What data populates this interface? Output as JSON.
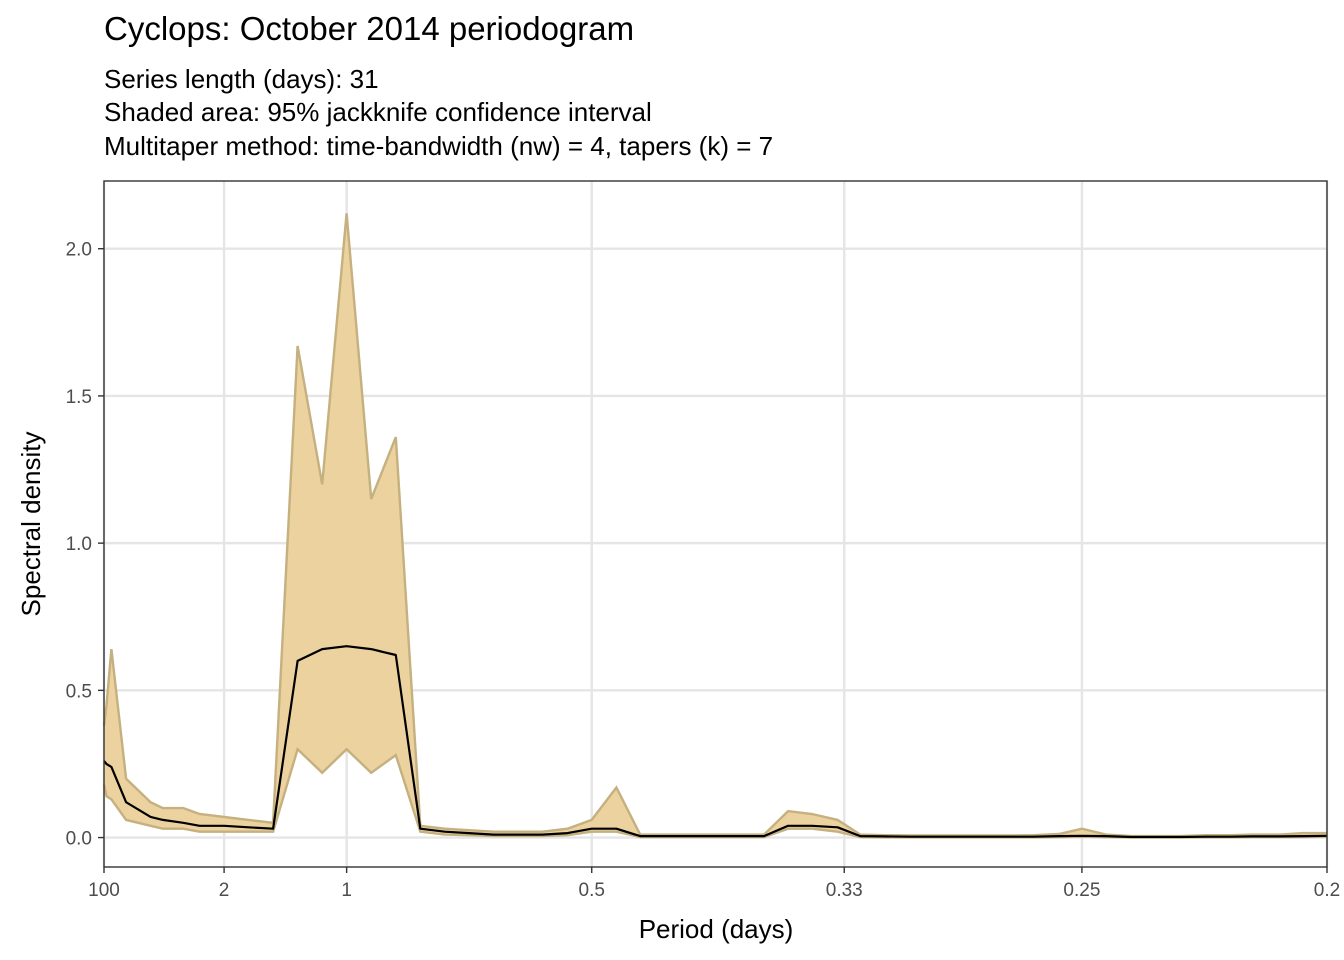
{
  "chart_data": {
    "type": "area",
    "title": "Cyclops: October 2014 periodogram",
    "subtitles": [
      "Series length (days): 31",
      "Shaded area: 95% jackknife confidence interval",
      "Multitaper method: time-bandwidth (nw) = 4, tapers (k) = 7"
    ],
    "xlabel": "Period (days)",
    "ylabel": "Spectral density",
    "x_scale": "reciprocal (axis printed as period = 1/frequency)",
    "x_ticks": [
      "100",
      "2",
      "1",
      "0.5",
      "0.33",
      "0.25",
      "0.2"
    ],
    "y_ticks": [
      "0.0",
      "0.5",
      "1.0",
      "1.5",
      "2.0"
    ],
    "xlim_period": [
      100,
      0.2
    ],
    "ylim": [
      -0.1,
      2.23
    ],
    "grid": true,
    "series_colors": {
      "band_fill": "#ecd29f",
      "band_edge": "#c5b07f",
      "line": "#000000"
    },
    "x": [
      100,
      50,
      25,
      10,
      5,
      4,
      3,
      2.5,
      2,
      1.667,
      1.429,
      1.25,
      1.111,
      1.0,
      0.909,
      0.833,
      0.769,
      0.714,
      0.667,
      0.625,
      0.588,
      0.556,
      0.526,
      0.5,
      0.476,
      0.455,
      0.435,
      0.417,
      0.4,
      0.385,
      0.37,
      0.357,
      0.345,
      0.333,
      0.323,
      0.313,
      0.303,
      0.294,
      0.286,
      0.278,
      0.27,
      0.263,
      0.256,
      0.25,
      0.244,
      0.238,
      0.233,
      0.227,
      0.222,
      0.217,
      0.213,
      0.208,
      0.204,
      0.2
    ],
    "spectral_density": [
      0.26,
      0.25,
      0.24,
      0.12,
      0.07,
      0.06,
      0.05,
      0.04,
      0.04,
      0.035,
      0.03,
      0.6,
      0.64,
      0.65,
      0.64,
      0.62,
      0.03,
      0.02,
      0.015,
      0.01,
      0.01,
      0.01,
      0.015,
      0.03,
      0.03,
      0.005,
      0.005,
      0.005,
      0.005,
      0.005,
      0.005,
      0.04,
      0.04,
      0.035,
      0.005,
      0.004,
      0.003,
      0.003,
      0.003,
      0.003,
      0.003,
      0.003,
      0.005,
      0.006,
      0.005,
      0.002,
      0.002,
      0.002,
      0.003,
      0.003,
      0.004,
      0.004,
      0.005,
      0.006
    ],
    "ci_lower": [
      0.18,
      0.14,
      0.13,
      0.06,
      0.04,
      0.03,
      0.03,
      0.02,
      0.02,
      0.02,
      0.02,
      0.3,
      0.22,
      0.3,
      0.22,
      0.28,
      0.02,
      0.01,
      0.008,
      0.005,
      0.005,
      0.005,
      0.008,
      0.02,
      0.02,
      0.002,
      0.002,
      0.002,
      0.002,
      0.002,
      0.002,
      0.03,
      0.03,
      0.02,
      0.002,
      0.001,
      0.001,
      0.001,
      0.001,
      0.001,
      0.001,
      0.001,
      0.002,
      0.003,
      0.002,
      0.001,
      0.001,
      0.001,
      0.001,
      0.001,
      0.002,
      0.002,
      0.002,
      0.003
    ],
    "ci_upper": [
      0.38,
      0.45,
      0.64,
      0.2,
      0.12,
      0.1,
      0.1,
      0.08,
      0.07,
      0.06,
      0.05,
      1.67,
      1.2,
      2.12,
      1.15,
      1.36,
      0.04,
      0.03,
      0.025,
      0.02,
      0.02,
      0.02,
      0.03,
      0.06,
      0.17,
      0.01,
      0.01,
      0.01,
      0.01,
      0.01,
      0.01,
      0.09,
      0.08,
      0.06,
      0.01,
      0.008,
      0.007,
      0.007,
      0.007,
      0.007,
      0.007,
      0.008,
      0.012,
      0.03,
      0.01,
      0.005,
      0.005,
      0.005,
      0.008,
      0.008,
      0.01,
      0.01,
      0.015,
      0.015
    ]
  }
}
